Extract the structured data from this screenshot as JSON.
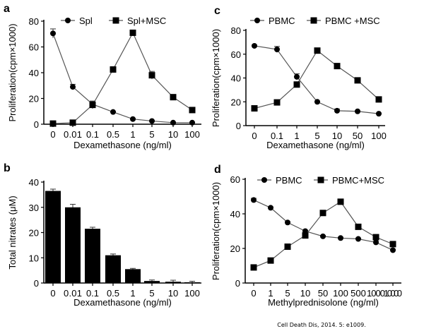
{
  "citation": "Cell Death Dis, 2014. 5: e1009.",
  "chart_data": [
    {
      "panel": "a",
      "type": "line",
      "categories": [
        "0",
        "0.01",
        "0.1",
        "0.5",
        "1",
        "5",
        "10",
        "100"
      ],
      "xlabel": "Dexamethasone (ng/ml)",
      "ylabel": "Proliferation(cpm×1000)",
      "ylim": [
        0,
        80
      ],
      "yticks": [
        0,
        20,
        40,
        60,
        80
      ],
      "legend": "top",
      "series": [
        {
          "name": "Spl",
          "marker": "circle",
          "values": [
            70.5,
            29,
            15.5,
            9.5,
            4,
            2.5,
            1.2,
            1.2
          ],
          "errors": [
            3.5,
            2,
            2,
            0.5,
            0.5,
            0.3,
            0.3,
            0.3
          ]
        },
        {
          "name": "Spl+MSC",
          "marker": "square",
          "values": [
            0.5,
            1.2,
            15,
            42.5,
            71,
            38,
            21,
            11
          ],
          "errors": [
            0.3,
            0.3,
            3,
            1,
            1,
            3,
            0.5,
            0.5
          ]
        }
      ]
    },
    {
      "panel": "b",
      "type": "bar",
      "categories": [
        "0",
        "0.01",
        "0.1",
        "0.5",
        "1",
        "5",
        "10",
        "100"
      ],
      "xlabel": "Dexamethasone (ng/ml)",
      "ylabel": "Total nitrates (μM)",
      "ylim": [
        0,
        40
      ],
      "yticks": [
        0,
        10,
        20,
        30,
        40
      ],
      "values": [
        36.5,
        30,
        21.5,
        11,
        5.5,
        0.8,
        0.5,
        0.3
      ],
      "errors": [
        0.7,
        1.2,
        0.6,
        0.5,
        0.3,
        0.4,
        0.6,
        0.4
      ],
      "color": "#000000"
    },
    {
      "panel": "c",
      "type": "line",
      "categories": [
        "0",
        "0.1",
        "1",
        "5",
        "10",
        "50",
        "100"
      ],
      "xlabel": "Dexamethasone (ng/ml)",
      "ylabel": "Proliferation(cpm×1000)",
      "ylim": [
        0,
        80
      ],
      "yticks": [
        0,
        20,
        40,
        60,
        80
      ],
      "legend": "top",
      "series": [
        {
          "name": "PBMC",
          "marker": "circle",
          "values": [
            67,
            64,
            41,
            20,
            12.5,
            12,
            10
          ],
          "errors": [
            0.5,
            2.5,
            2.5,
            0.5,
            1.5,
            0.5,
            0.5
          ]
        },
        {
          "name": "PBMC +MSC",
          "marker": "square",
          "values": [
            14.5,
            19.5,
            34.5,
            63,
            50,
            38,
            22
          ],
          "errors": [
            0.5,
            0.5,
            2,
            0.5,
            0.5,
            0.5,
            0.5
          ]
        }
      ]
    },
    {
      "panel": "d",
      "type": "line",
      "categories": [
        "0",
        "1",
        "5",
        "10",
        "50",
        "100",
        "500",
        "1000",
        "10000"
      ],
      "xlabel": "Methylprednisolone (ng/ml)",
      "ylabel": "Proliferation(cpm×1000)",
      "ylim": [
        0,
        60
      ],
      "yticks": [
        0,
        20,
        40,
        60
      ],
      "legend": "top",
      "series": [
        {
          "name": "PBMC",
          "marker": "circle",
          "values": [
            48,
            43.5,
            35,
            30,
            27,
            26,
            25.5,
            23.5,
            19
          ],
          "errors": [
            1,
            0.5,
            0.5,
            0.5,
            0.5,
            0.5,
            0.5,
            0.5,
            0.5
          ]
        },
        {
          "name": "PBMC+MSC",
          "marker": "square",
          "values": [
            9,
            13,
            21,
            27.5,
            40.5,
            47,
            32.5,
            26.5,
            22.5
          ],
          "errors": [
            0.5,
            0.5,
            0.5,
            1,
            0.5,
            0.5,
            0.5,
            0.5,
            0.5
          ]
        }
      ]
    }
  ]
}
